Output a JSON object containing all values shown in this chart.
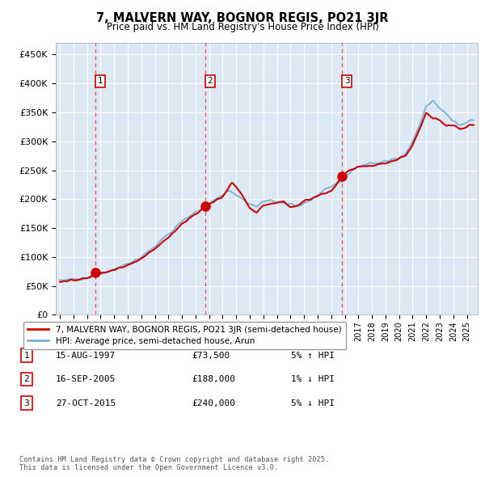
{
  "title": "7, MALVERN WAY, BOGNOR REGIS, PO21 3JR",
  "subtitle": "Price paid vs. HM Land Registry's House Price Index (HPI)",
  "legend_property": "7, MALVERN WAY, BOGNOR REGIS, PO21 3JR (semi-detached house)",
  "legend_hpi": "HPI: Average price, semi-detached house, Arun",
  "ylabel_ticks": [
    "£0",
    "£50K",
    "£100K",
    "£150K",
    "£200K",
    "£250K",
    "£300K",
    "£350K",
    "£400K",
    "£450K"
  ],
  "ytick_values": [
    0,
    50000,
    100000,
    150000,
    200000,
    250000,
    300000,
    350000,
    400000,
    450000
  ],
  "ylim": [
    0,
    470000
  ],
  "xlim_start": 1994.7,
  "xlim_end": 2025.8,
  "transactions": [
    {
      "num": 1,
      "date_str": "15-AUG-1997",
      "price": 73500,
      "pct": "5%",
      "dir": "↑",
      "year": 1997.62
    },
    {
      "num": 2,
      "date_str": "16-SEP-2005",
      "price": 188000,
      "pct": "1%",
      "dir": "↓",
      "year": 2005.71
    },
    {
      "num": 3,
      "date_str": "27-OCT-2015",
      "price": 240000,
      "pct": "5%",
      "dir": "↓",
      "year": 2015.82
    }
  ],
  "hpi_color": "#7bafd4",
  "property_color": "#cc0000",
  "vline_color": "#ff4444",
  "background_color": "#dce9f5",
  "grid_color": "#ffffff",
  "footnote": "Contains HM Land Registry data © Crown copyright and database right 2025.\nThis data is licensed under the Open Government Licence v3.0."
}
